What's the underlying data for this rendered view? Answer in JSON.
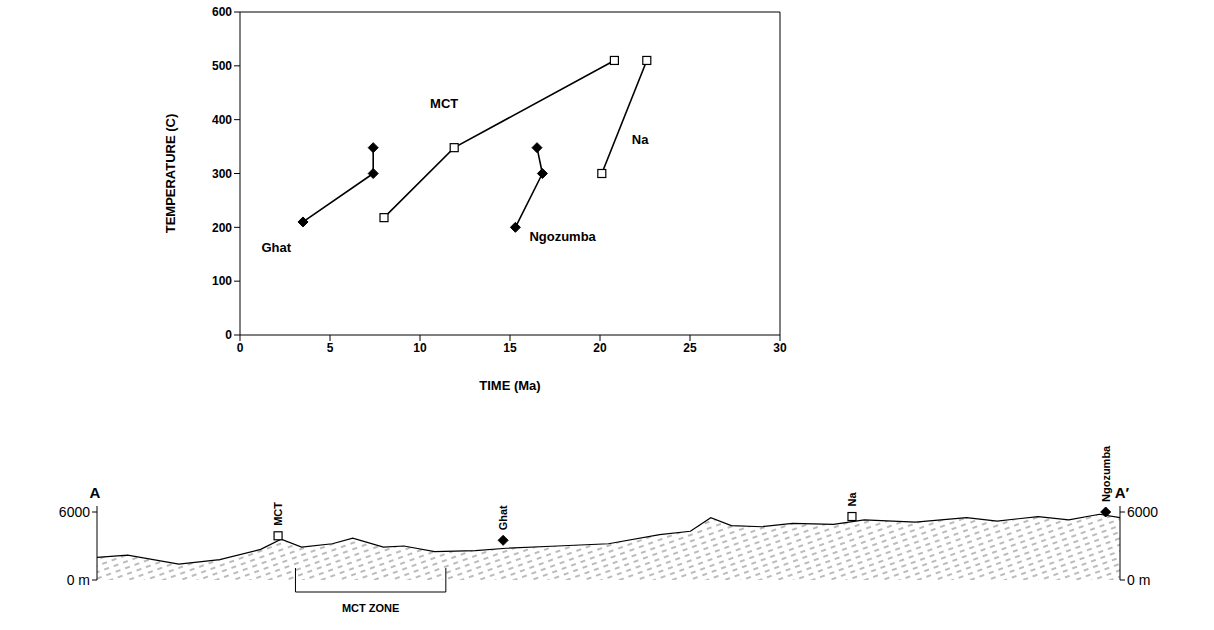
{
  "chart_data": {
    "type": "line",
    "x_label": "TIME (Ma)",
    "y_label": "TEMPERATURE (C)",
    "xlim": [
      0,
      30
    ],
    "xticks": [
      0,
      5,
      10,
      15,
      20,
      25,
      30
    ],
    "ylim": [
      0,
      600
    ],
    "yticks": [
      0,
      100,
      200,
      300,
      400,
      500,
      600
    ],
    "series": [
      {
        "name": "Ghat",
        "color": "#000000",
        "marker": "diamond",
        "x": [
          3.5,
          7.4,
          7.4
        ],
        "values": [
          210,
          300,
          348
        ]
      },
      {
        "name": "MCT",
        "color": "#000000",
        "marker": "square",
        "x": [
          8,
          11.9,
          20.8
        ],
        "values": [
          218,
          348,
          510
        ]
      },
      {
        "name": "Ngozumba",
        "color": "#000000",
        "marker": "diamond",
        "x": [
          15.3,
          16.8,
          16.5
        ],
        "values": [
          200,
          300,
          348
        ]
      },
      {
        "name": "Na",
        "color": "#000000",
        "marker": "square",
        "x": [
          20.1,
          22.6
        ],
        "values": [
          300,
          510
        ]
      }
    ]
  },
  "cross_section": {
    "start": "A",
    "end": "A′",
    "elevation_lim": [
      0,
      6000
    ],
    "elevation_ticks": [
      {
        "value": 6000,
        "label": "6000"
      },
      {
        "value": 0,
        "label": "0 m"
      }
    ],
    "profile": {
      "distance": [
        0,
        3,
        8,
        12,
        16,
        18,
        20,
        23,
        25,
        28,
        30,
        33,
        37,
        40,
        45,
        50,
        55,
        58,
        60,
        62,
        65,
        68,
        72,
        75,
        80,
        85,
        88,
        92,
        95,
        98,
        100
      ],
      "elevation": [
        2000,
        2200,
        1400,
        1800,
        2700,
        3600,
        2900,
        3200,
        3700,
        2900,
        3000,
        2500,
        2600,
        2800,
        3000,
        3200,
        4000,
        4300,
        5500,
        4800,
        4700,
        5000,
        4900,
        5300,
        5100,
        5500,
        5200,
        5600,
        5300,
        5800,
        5500
      ]
    },
    "stations": [
      {
        "name": "MCT",
        "marker": "square",
        "distance": 17.7,
        "elevation": 3900
      },
      {
        "name": "Ghat",
        "marker": "diamond",
        "distance": 39.7,
        "elevation": 3500
      },
      {
        "name": "Na",
        "marker": "square",
        "distance": 73.8,
        "elevation": 5600
      },
      {
        "name": "Ngozumba",
        "marker": "diamond",
        "distance": 98.6,
        "elevation": 6000
      }
    ],
    "zone": {
      "label": "MCT ZONE",
      "from": 19.4,
      "to": 34.1
    }
  }
}
